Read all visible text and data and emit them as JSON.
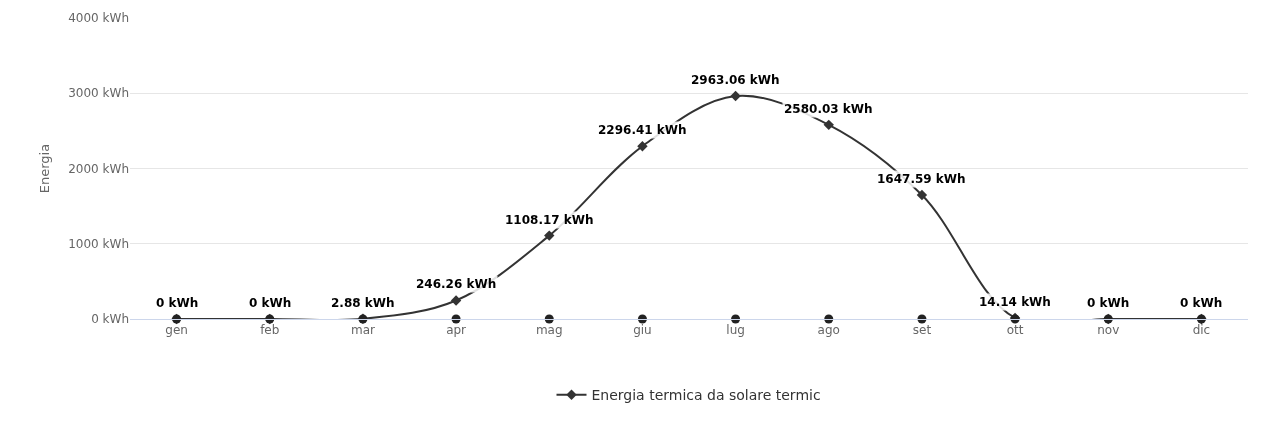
{
  "chart_data": {
    "type": "line",
    "ylabel": "Energia",
    "categories": [
      "gen",
      "feb",
      "mar",
      "apr",
      "mag",
      "giu",
      "lug",
      "ago",
      "set",
      "ott",
      "nov",
      "dic"
    ],
    "ylim": [
      0,
      4000
    ],
    "yticks": [
      {
        "value": 0,
        "label": "0 kWh"
      },
      {
        "value": 1000,
        "label": "1000 kWh"
      },
      {
        "value": 2000,
        "label": "2000 kWh"
      },
      {
        "value": 3000,
        "label": "3000 kWh"
      },
      {
        "value": 4000,
        "label": "4000 kWh"
      }
    ],
    "grid": "y",
    "legend": "bottom",
    "series": [
      {
        "name": "Energia termica da solare termic",
        "color": "#333333",
        "marker": "diamond",
        "values": [
          0,
          0,
          2.88,
          246.26,
          1108.17,
          2296.41,
          2963.06,
          2580.03,
          1647.59,
          14.14,
          0,
          0
        ],
        "value_labels": [
          "0 kWh",
          "0 kWh",
          "2.88 kWh",
          "246.26 kWh",
          "1108.17 kWh",
          "2296.41 kWh",
          "2963.06 kWh",
          "2580.03 kWh",
          "1647.59 kWh",
          "14.14 kWh",
          "0 kWh",
          "0 kWh"
        ]
      },
      {
        "color": "#222222",
        "type": "scatter",
        "marker": "circle",
        "values": [
          0,
          0,
          0,
          0,
          0,
          0,
          0,
          0,
          0,
          0,
          0,
          0
        ]
      }
    ]
  }
}
